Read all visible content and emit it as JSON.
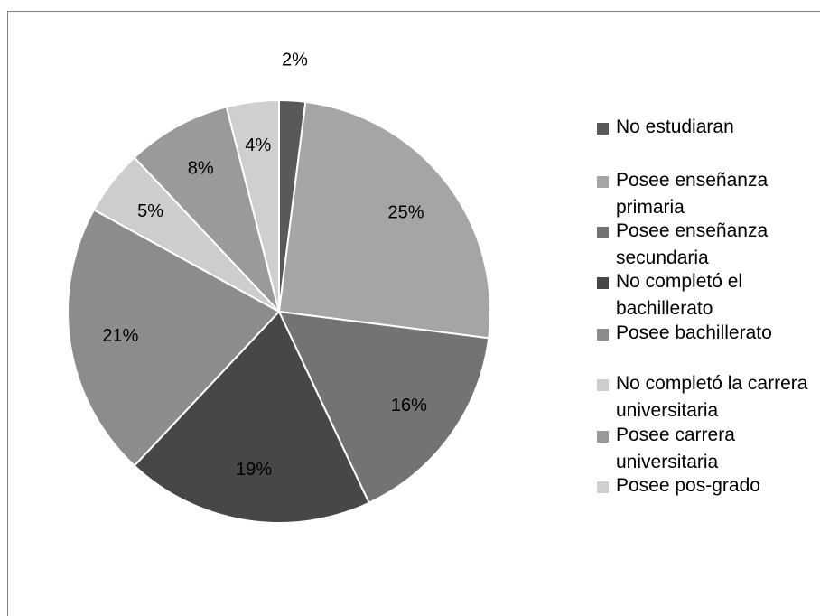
{
  "chart_data": {
    "type": "pie",
    "title": "",
    "categories": [
      "No estudiaran",
      "Posee enseñanza primaria",
      "Posee enseñanza secundaria",
      "No completó el bachillerato",
      "Posee bachillerato",
      "No completó la carrera universitaria",
      "Posee carrera universitaria",
      "Posee pos-grado"
    ],
    "values": [
      2,
      25,
      16,
      19,
      21,
      5,
      8,
      4
    ],
    "data_labels": [
      "2%",
      "25%",
      "16%",
      "19%",
      "21%",
      "5%",
      "8%",
      "4%"
    ],
    "colors": [
      "#595959",
      "#a5a5a5",
      "#737373",
      "#474747",
      "#8c8c8c",
      "#cdcdcd",
      "#9a9a9a",
      "#cfcfcf"
    ],
    "legend_position": "right",
    "start_angle_deg": 0,
    "direction": "clockwise"
  }
}
